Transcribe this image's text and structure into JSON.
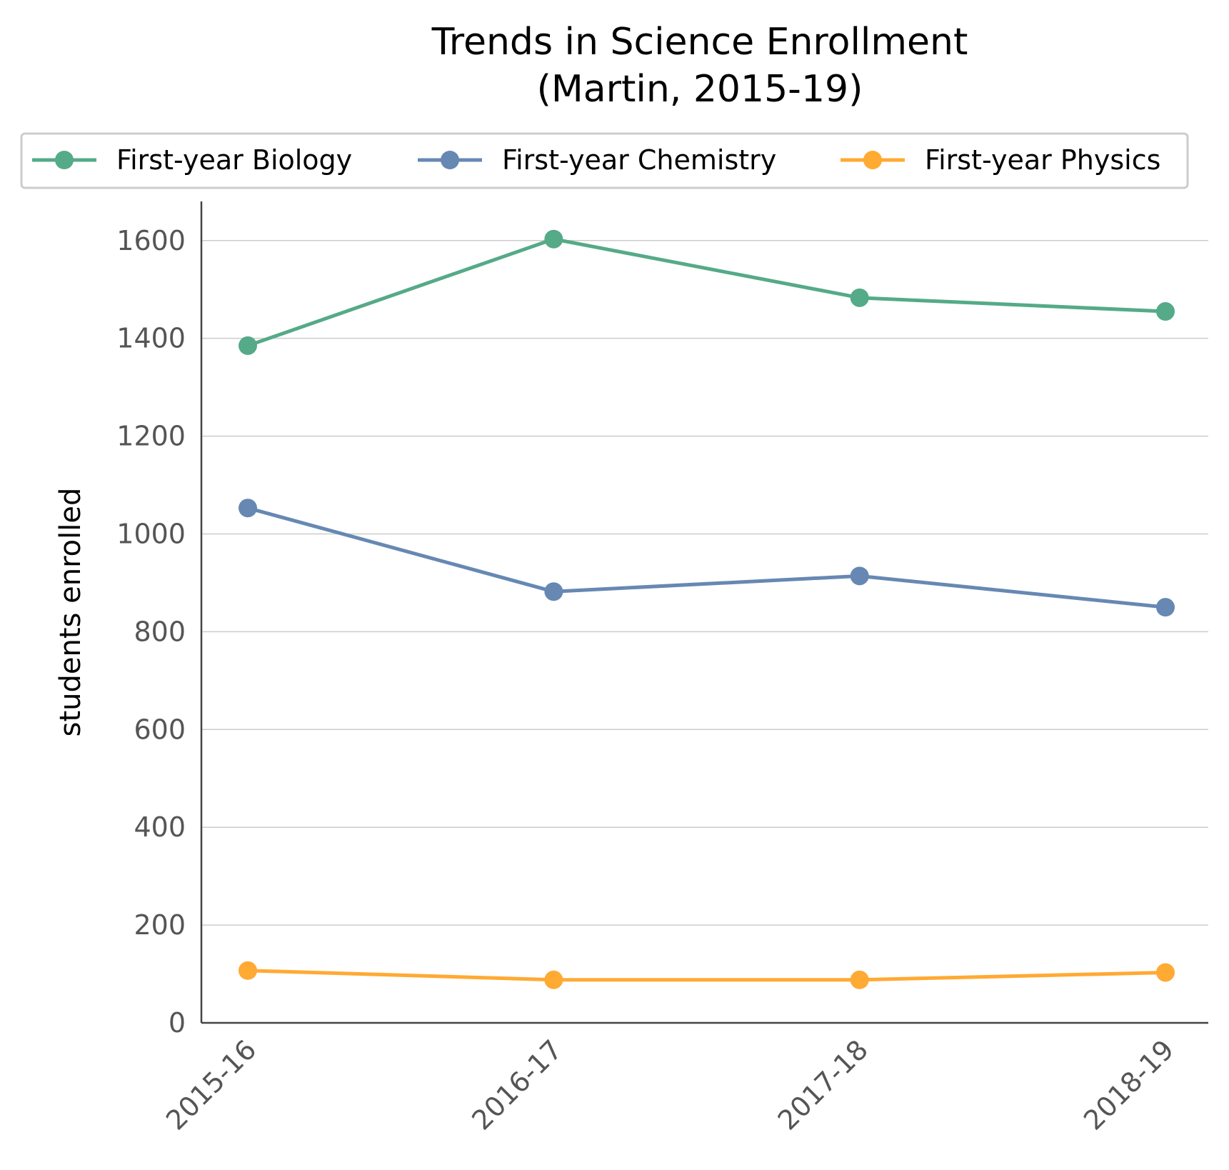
{
  "chart_data": {
    "type": "line",
    "title": [
      "Trends in Science Enrollment",
      "(Martin, 2015-19)"
    ],
    "xlabel": "",
    "ylabel": "students enrolled",
    "categories": [
      "2015-16",
      "2016-17",
      "2017-18",
      "2018-19"
    ],
    "y_ticks": [
      "0",
      "200",
      "400",
      "600",
      "800",
      "1000",
      "1200",
      "1400",
      "1600"
    ],
    "ylim": [
      0,
      1680
    ],
    "grid": "horizontal",
    "legend_position": "top",
    "series": [
      {
        "name": "First-year Biology",
        "color": "#55aa88",
        "values": [
          1385,
          1603,
          1483,
          1455
        ]
      },
      {
        "name": "First-year Chemistry",
        "color": "#6688b3",
        "values": [
          1053,
          882,
          914,
          850
        ]
      },
      {
        "name": "First-year Physics",
        "color": "#ffaa33",
        "values": [
          107,
          88,
          88,
          103
        ]
      }
    ]
  }
}
